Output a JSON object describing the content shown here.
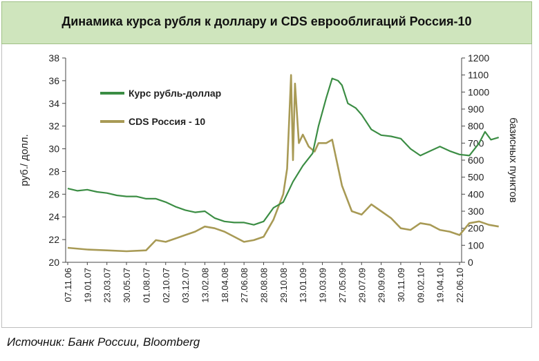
{
  "title": "Динамика курса рубля к доллару и CDS еврооблигаций Россия-10",
  "source": "Источник: Банк России, Bloomberg",
  "colors": {
    "usd": "#3b8d44",
    "cds": "#a89a55",
    "title_bg": "#cfe5bd"
  },
  "chart_data": {
    "type": "line",
    "title": "Динамика курса рубля к доллару и CDS еврооблигаций Россия-10",
    "ylabel_left": "руб./ долл.",
    "ylabel_right": "базисных пунктов",
    "ylim_left": [
      20,
      38
    ],
    "ylim_right": [
      0,
      1200
    ],
    "yticks_left": [
      "20",
      "22",
      "24",
      "26",
      "28",
      "30",
      "32",
      "34",
      "36",
      "38"
    ],
    "yticks_right": [
      "0",
      "100",
      "200",
      "300",
      "400",
      "500",
      "600",
      "700",
      "800",
      "900",
      "1000",
      "1100",
      "1200"
    ],
    "x_ticks": [
      "07.11.06",
      "19.01.07",
      "23.03.07",
      "30.05.07",
      "01.08.07",
      "02.10.07",
      "03.12.07",
      "13.02.08",
      "18.04.08",
      "27.06.08",
      "28.08.08",
      "29.10.08",
      "13.01.09",
      "19.03.09",
      "27.05.09",
      "29.07.09",
      "29.09.09",
      "30.11.09",
      "09.02.10",
      "19.04.10",
      "22.06.10"
    ],
    "legend_position": "top-left",
    "grid": false,
    "series": [
      {
        "name": "Курс рубль-доллар",
        "axis": "left",
        "points": [
          [
            0,
            26.5
          ],
          [
            0.5,
            26.3
          ],
          [
            1,
            26.4
          ],
          [
            1.5,
            26.2
          ],
          [
            2,
            26.1
          ],
          [
            2.5,
            25.9
          ],
          [
            3,
            25.8
          ],
          [
            3.5,
            25.8
          ],
          [
            4,
            25.6
          ],
          [
            4.5,
            25.6
          ],
          [
            5,
            25.3
          ],
          [
            5.5,
            24.9
          ],
          [
            6,
            24.6
          ],
          [
            6.5,
            24.4
          ],
          [
            7,
            24.5
          ],
          [
            7.5,
            23.9
          ],
          [
            8,
            23.6
          ],
          [
            8.5,
            23.5
          ],
          [
            9,
            23.5
          ],
          [
            9.5,
            23.3
          ],
          [
            10,
            23.6
          ],
          [
            10.5,
            24.8
          ],
          [
            11,
            25.3
          ],
          [
            11.5,
            27.1
          ],
          [
            12,
            28.5
          ],
          [
            12.5,
            29.6
          ],
          [
            12.8,
            32.0
          ],
          [
            13.2,
            34.5
          ],
          [
            13.5,
            36.2
          ],
          [
            13.8,
            36.0
          ],
          [
            14,
            35.6
          ],
          [
            14.3,
            34.0
          ],
          [
            14.7,
            33.6
          ],
          [
            15,
            33.0
          ],
          [
            15.5,
            31.7
          ],
          [
            16,
            31.2
          ],
          [
            16.5,
            31.1
          ],
          [
            17,
            30.9
          ],
          [
            17.5,
            30.0
          ],
          [
            18,
            29.4
          ],
          [
            18.5,
            29.8
          ],
          [
            19,
            30.2
          ],
          [
            19.5,
            29.8
          ],
          [
            20,
            29.5
          ],
          [
            20.5,
            29.4
          ],
          [
            21,
            30.5
          ],
          [
            21.3,
            31.5
          ],
          [
            21.6,
            30.8
          ],
          [
            22,
            31.0
          ]
        ]
      },
      {
        "name": "CDS Россия - 10",
        "axis": "right",
        "points": [
          [
            0,
            85
          ],
          [
            1,
            75
          ],
          [
            2,
            70
          ],
          [
            3,
            65
          ],
          [
            4,
            70
          ],
          [
            4.5,
            130
          ],
          [
            5,
            120
          ],
          [
            5.5,
            140
          ],
          [
            6,
            160
          ],
          [
            6.5,
            180
          ],
          [
            7,
            210
          ],
          [
            7.5,
            200
          ],
          [
            8,
            180
          ],
          [
            8.5,
            150
          ],
          [
            9,
            120
          ],
          [
            9.5,
            130
          ],
          [
            10,
            150
          ],
          [
            10.5,
            250
          ],
          [
            11,
            400
          ],
          [
            11.2,
            550
          ],
          [
            11.4,
            1100
          ],
          [
            11.5,
            600
          ],
          [
            11.6,
            1050
          ],
          [
            11.8,
            700
          ],
          [
            12,
            750
          ],
          [
            12.3,
            680
          ],
          [
            12.6,
            650
          ],
          [
            12.8,
            700
          ],
          [
            13.2,
            700
          ],
          [
            13.5,
            720
          ],
          [
            14,
            450
          ],
          [
            14.5,
            300
          ],
          [
            15,
            280
          ],
          [
            15.5,
            340
          ],
          [
            16,
            300
          ],
          [
            16.5,
            260
          ],
          [
            17,
            200
          ],
          [
            17.5,
            190
          ],
          [
            18,
            230
          ],
          [
            18.5,
            220
          ],
          [
            19,
            190
          ],
          [
            19.5,
            180
          ],
          [
            20,
            160
          ],
          [
            20.5,
            230
          ],
          [
            21,
            240
          ],
          [
            21.5,
            220
          ],
          [
            22,
            210
          ]
        ]
      }
    ]
  }
}
